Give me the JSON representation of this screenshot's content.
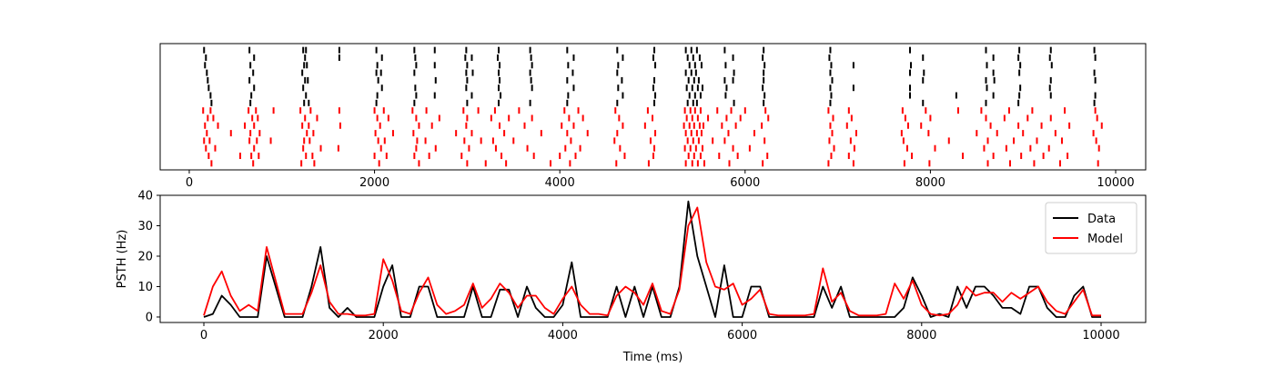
{
  "chart_data": [
    {
      "type": "raster",
      "xlim": [
        -314,
        10324
      ],
      "xticks": [
        0,
        2000,
        4000,
        6000,
        8000,
        10000
      ],
      "series": [
        {
          "color": "#000000",
          "trials": [
            [
              160,
              650,
              1230,
              1260,
              1620,
              2020,
              2430,
              2650,
              2990,
              3340,
              3680,
              4080,
              4620,
              5020,
              5360,
              5420,
              5480,
              5780,
              6200,
              6920,
              7780,
              8600,
              8960,
              9300,
              9770
            ],
            [
              180,
              700,
              1250,
              1620,
              2080,
              2440,
              2980,
              3050,
              3330,
              3690,
              4150,
              4680,
              5010,
              5380,
              5440,
              5510,
              5870,
              6190,
              6910,
              7920,
              8680,
              8950,
              9290,
              9780
            ],
            [
              170,
              660,
              1240,
              1270,
              2030,
              2450,
              2650,
              3000,
              3350,
              3700,
              4090,
              4630,
              5030,
              5400,
              5460,
              5530,
              5790,
              6210,
              6930,
              7170,
              7790,
              8610,
              8970,
              9310
            ],
            [
              190,
              690,
              1220,
              2020,
              2070,
              2430,
              2990,
              3060,
              3340,
              3680,
              4140,
              4620,
              5360,
              5420,
              5470,
              5880,
              6200,
              6920,
              7780,
              7930,
              8680,
              8960,
              9770
            ],
            [
              200,
              650,
              1250,
              1280,
              2040,
              2660,
              3000,
              3350,
              3690,
              4080,
              4670,
              5020,
              5390,
              5450,
              5500,
              5780,
              5870,
              6200,
              6940,
              7920,
              8600,
              8690,
              9300,
              9780
            ],
            [
              210,
              700,
              1230,
              2080,
              2440,
              2990,
              3340,
              3700,
              4150,
              4630,
              5010,
              5370,
              5430,
              5490,
              5540,
              5800,
              6190,
              6920,
              7170,
              7780,
              8610,
              8970,
              9290
            ],
            [
              230,
              670,
              1260,
              2030,
              2450,
              2650,
              3050,
              3360,
              4090,
              4680,
              5030,
              5400,
              5460,
              5520,
              5790,
              6210,
              6930,
              7780,
              8280,
              8680,
              8960,
              9300,
              9780
            ],
            [
              240,
              660,
              1240,
              1290,
              2020,
              2430,
              3000,
              3340,
              3680,
              4080,
              4620,
              5020,
              5380,
              5440,
              5480,
              5880,
              6200,
              6920,
              7920,
              8600,
              8950,
              9770
            ]
          ]
        },
        {
          "color": "#ff0000",
          "trials": [
            [
              150,
              230,
              640,
              720,
              910,
              1200,
              1310,
              1620,
              2000,
              2100,
              2410,
              2560,
              2960,
              3120,
              3300,
              3560,
              4050,
              4200,
              4600,
              4950,
              5350,
              5410,
              5460,
              5520,
              5700,
              5850,
              6000,
              6220,
              6900,
              7120,
              7700,
              7950,
              8300,
              8550,
              8850,
              9100,
              9450,
              9780
            ],
            [
              200,
              260,
              680,
              740,
              1250,
              1380,
              2030,
              2150,
              2450,
              2700,
              3000,
              3260,
              3450,
              3700,
              4100,
              4250,
              4640,
              5000,
              5370,
              5430,
              5490,
              5600,
              5800,
              5950,
              6250,
              6950,
              7150,
              7730,
              8000,
              8600,
              8800,
              9050,
              9300,
              9800
            ],
            [
              170,
              310,
              600,
              700,
              1220,
              1290,
              1630,
              2060,
              2480,
              2620,
              2990,
              3350,
              3620,
              4020,
              4150,
              4680,
              4920,
              5340,
              5400,
              5450,
              5510,
              5550,
              5750,
              5900,
              6180,
              6920,
              7100,
              7760,
              7900,
              8650,
              8950,
              9200,
              9500,
              9850
            ],
            [
              190,
              450,
              660,
              760,
              1270,
              1340,
              2010,
              2200,
              2420,
              2880,
              3050,
              3400,
              3800,
              4080,
              4300,
              4620,
              5030,
              5360,
              5420,
              5480,
              5530,
              5820,
              6100,
              6940,
              7200,
              7690,
              7980,
              8500,
              8720,
              9000,
              9350,
              9760
            ],
            [
              160,
              220,
              650,
              730,
              880,
              1240,
              1300,
              2040,
              2110,
              2460,
              2550,
              2970,
              3150,
              3280,
              3500,
              4120,
              4590,
              4980,
              5380,
              5440,
              5500,
              5650,
              5780,
              6210,
              6910,
              7140,
              7710,
              8200,
              8620,
              8900,
              9150,
              9420,
              9790
            ],
            [
              180,
              280,
              700,
              1230,
              1420,
              1610,
              2070,
              2450,
              2660,
              3020,
              3310,
              3650,
              4060,
              4220,
              4650,
              5020,
              5350,
              5410,
              5470,
              5540,
              5870,
              6050,
              6960,
              7180,
              7750,
              8050,
              8580,
              8820,
              9080,
              9280,
              9820
            ],
            [
              210,
              550,
              670,
              750,
              1260,
              1330,
              2000,
              2130,
              2430,
              2590,
              2940,
              3370,
              3720,
              4000,
              4170,
              4700,
              5010,
              5390,
              5450,
              5520,
              5720,
              5920,
              6240,
              6930,
              7120,
              7800,
              8350,
              8680,
              8980,
              9220,
              9480
            ],
            [
              240,
              690,
              1210,
              1350,
              2050,
              2480,
              3000,
              3200,
              3420,
              3900,
              4110,
              4610,
              4960,
              5360,
              5430,
              5490,
              5560,
              5830,
              6190,
              6900,
              7170,
              7720,
              7990,
              8620,
              8860,
              9120,
              9400,
              9810
            ]
          ]
        }
      ]
    },
    {
      "type": "line",
      "xlabel": "Time (ms)",
      "ylabel": "PSTH (Hz)",
      "xlim": [
        -487,
        10497
      ],
      "ylim": [
        -1.8,
        40
      ],
      "xticks": [
        0,
        2000,
        4000,
        6000,
        8000,
        10000
      ],
      "yticks": [
        0,
        10,
        20,
        30,
        40
      ],
      "legend": "upper right",
      "x": [
        0,
        100,
        200,
        300,
        400,
        500,
        600,
        700,
        800,
        900,
        1000,
        1100,
        1200,
        1300,
        1400,
        1500,
        1600,
        1700,
        1800,
        1900,
        2000,
        2100,
        2200,
        2300,
        2400,
        2500,
        2600,
        2700,
        2800,
        2900,
        3000,
        3100,
        3200,
        3300,
        3400,
        3500,
        3600,
        3700,
        3800,
        3900,
        4000,
        4100,
        4200,
        4300,
        4400,
        4500,
        4600,
        4700,
        4800,
        4900,
        5000,
        5100,
        5200,
        5300,
        5400,
        5500,
        5600,
        5700,
        5800,
        5900,
        6000,
        6100,
        6200,
        6300,
        6400,
        6500,
        6600,
        6700,
        6800,
        6900,
        7000,
        7100,
        7200,
        7300,
        7400,
        7500,
        7600,
        7700,
        7800,
        7900,
        8000,
        8100,
        8200,
        8300,
        8400,
        8500,
        8600,
        8700,
        8800,
        8900,
        9000,
        9100,
        9200,
        9300,
        9400,
        9500,
        9600,
        9700,
        9800,
        9900,
        10000
      ],
      "series": [
        {
          "name": "Data",
          "color": "#000000",
          "values": [
            0,
            1,
            7,
            4,
            0,
            0,
            0,
            20,
            10,
            0,
            0,
            0,
            10,
            23,
            3,
            0,
            3,
            0,
            0,
            0,
            10,
            17,
            0,
            0,
            10,
            10,
            0,
            0,
            0,
            0,
            10,
            0,
            0,
            9,
            9,
            0,
            10,
            3,
            0,
            0,
            4,
            18,
            0,
            0,
            0,
            0,
            10,
            0,
            10,
            0,
            10,
            0,
            0,
            10,
            38,
            20,
            10,
            0,
            17,
            0,
            0,
            10,
            10,
            0,
            0,
            0,
            0,
            0,
            0,
            10,
            3,
            10,
            0,
            0,
            0,
            0,
            0,
            0,
            3,
            13,
            7,
            0,
            1,
            0,
            10,
            3,
            10,
            10,
            7,
            3,
            3,
            1,
            10,
            10,
            3,
            0,
            0,
            7,
            10,
            0,
            0
          ]
        },
        {
          "name": "Model",
          "color": "#ff0000",
          "values": [
            0.5,
            10,
            15,
            7,
            2,
            4,
            2,
            23,
            12,
            1,
            1,
            1,
            8,
            17,
            5,
            1,
            1,
            0.5,
            0.5,
            1,
            19,
            12,
            2,
            1,
            8,
            13,
            4,
            1,
            2,
            4,
            11,
            3,
            6,
            11,
            8,
            3,
            7,
            7,
            3,
            1,
            6,
            10,
            4,
            1,
            1,
            0.5,
            7,
            10,
            8,
            4,
            11,
            2,
            1,
            9,
            30,
            36,
            18,
            10,
            9,
            11,
            4,
            6,
            9,
            1,
            0.5,
            0.5,
            0.5,
            0.5,
            1,
            16,
            5,
            8,
            2,
            0.5,
            0.5,
            0.5,
            1,
            11,
            6,
            12,
            4,
            1,
            0.5,
            1,
            4,
            10,
            7,
            8,
            8,
            5,
            8,
            6,
            8,
            10,
            5,
            2,
            1,
            5,
            9,
            0.5,
            0.5
          ]
        }
      ]
    }
  ]
}
